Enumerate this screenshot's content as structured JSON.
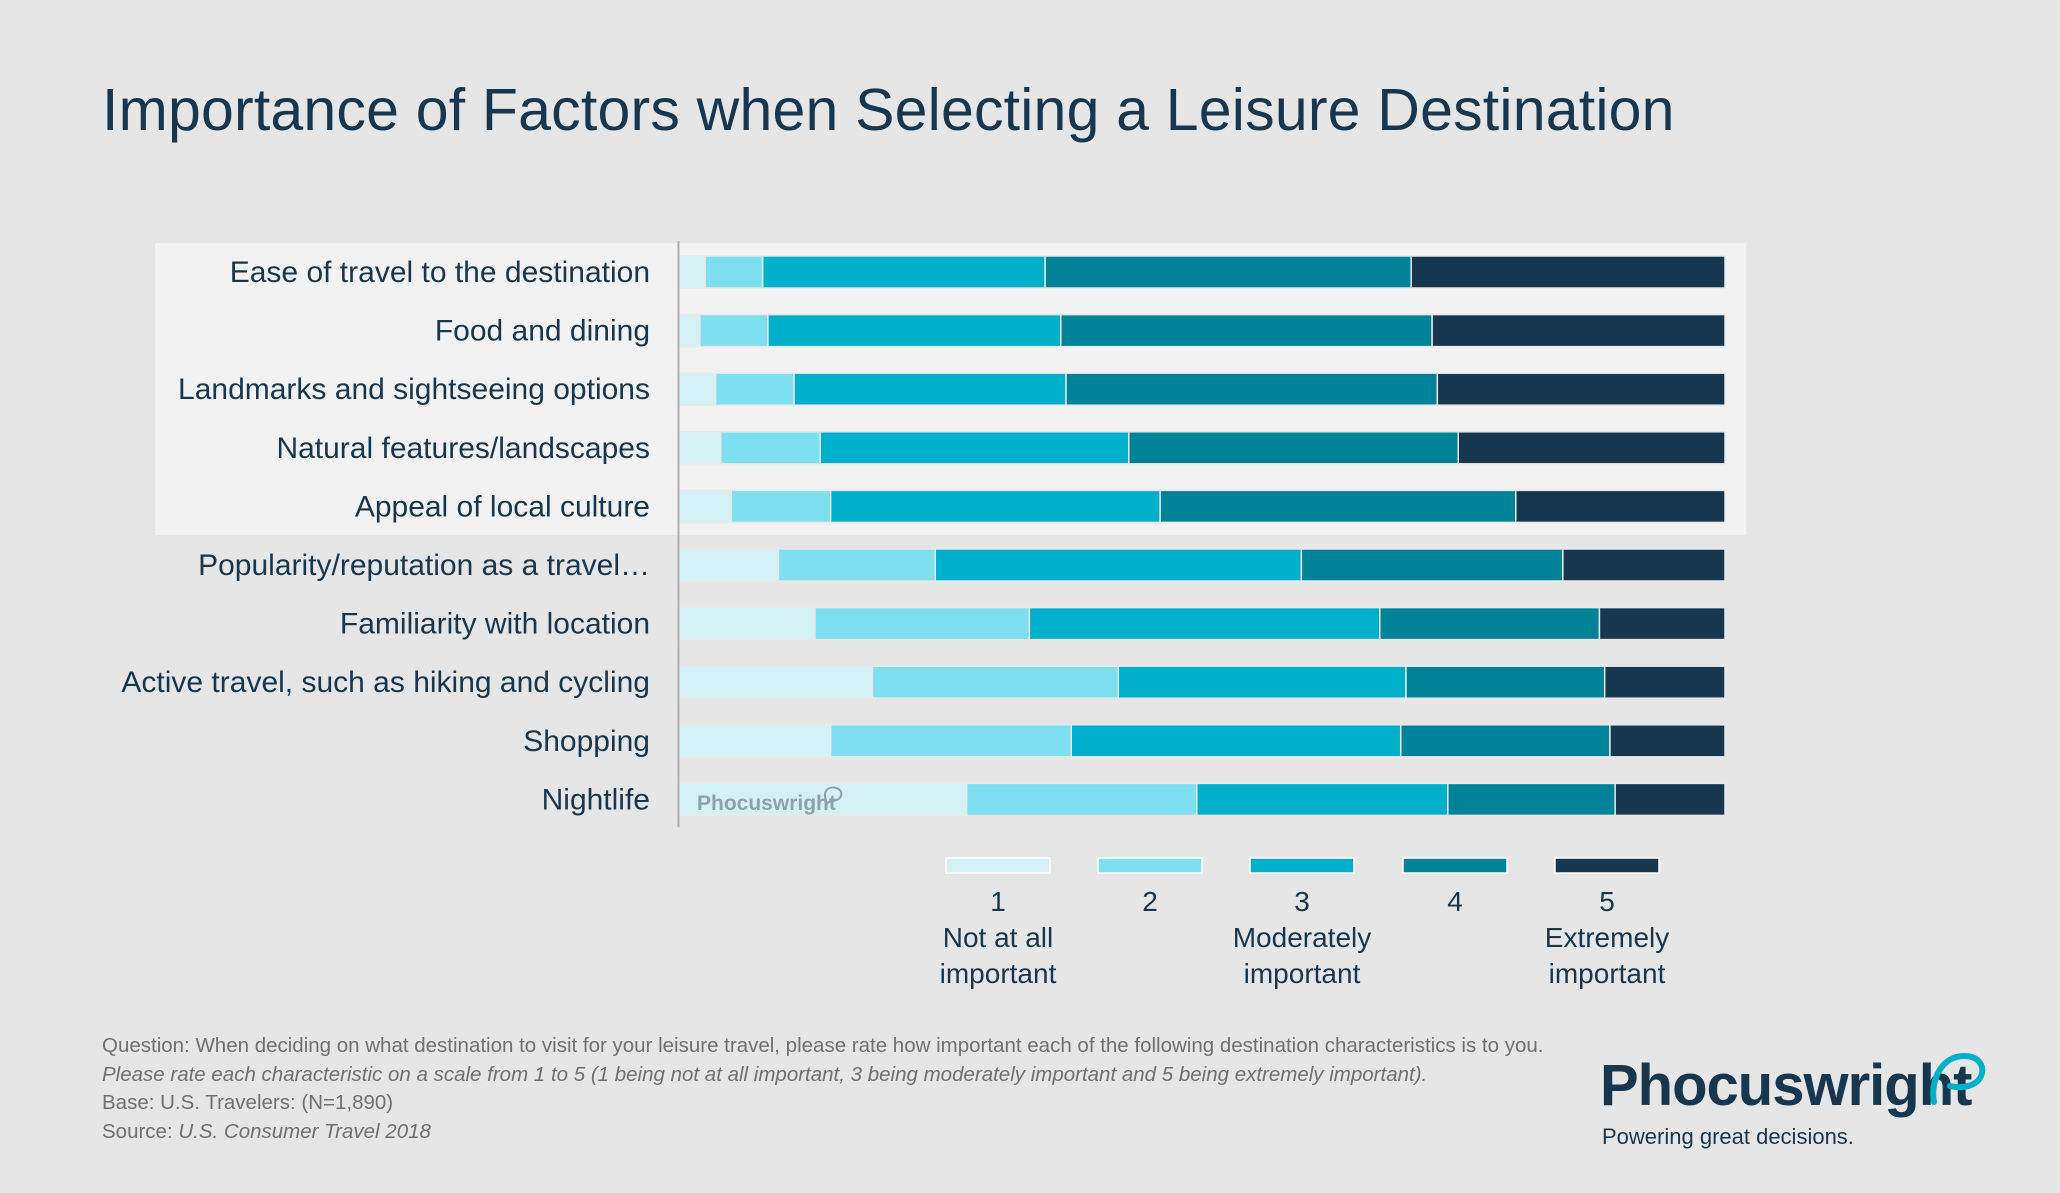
{
  "chart_data": {
    "type": "bar",
    "orientation": "horizontal",
    "stacked": true,
    "percent": true,
    "title": "Importance of Factors when Selecting a Leisure Destination",
    "categories": [
      "Ease of travel to the destination",
      "Food and dining",
      "Landmarks and sightseeing options",
      "Natural features/landscapes",
      "Appeal of local culture",
      "Popularity/reputation as a travel…",
      "Familiarity with location",
      "Active travel, such as hiking and cycling",
      "Shopping",
      "Nightlife"
    ],
    "highlighted_categories": 5,
    "series": [
      {
        "name": "1",
        "color": "#d4f1f6",
        "values": [
          2.5,
          2,
          3.5,
          4,
          5,
          9.5,
          13,
          18.5,
          14.5,
          27.5
        ]
      },
      {
        "name": "2",
        "color": "#7ddfef",
        "values": [
          5.5,
          6.5,
          7.5,
          9.5,
          9.5,
          15,
          20.5,
          23.5,
          23,
          22
        ]
      },
      {
        "name": "3",
        "color": "#00b0ca",
        "values": [
          27,
          28,
          26,
          29.5,
          31.5,
          35,
          33.5,
          27.5,
          31.5,
          24
        ]
      },
      {
        "name": "4",
        "color": "#008299",
        "values": [
          35,
          35.5,
          35.5,
          31.5,
          34,
          25,
          21,
          19,
          20,
          16
        ]
      },
      {
        "name": "5",
        "color": "#17364f",
        "values": [
          30,
          28,
          27.5,
          25.5,
          20,
          15.5,
          12,
          11.5,
          11,
          10.5
        ]
      }
    ],
    "xlim": [
      0,
      100
    ],
    "legend": {
      "position": "bottom",
      "items": [
        {
          "num": "1",
          "desc": [
            "Not at all",
            "important"
          ]
        },
        {
          "num": "2",
          "desc": []
        },
        {
          "num": "3",
          "desc": [
            "Moderately",
            "important"
          ]
        },
        {
          "num": "4",
          "desc": []
        },
        {
          "num": "5",
          "desc": [
            "Extremely",
            "important"
          ]
        }
      ]
    },
    "watermark": "Phocuswright"
  },
  "footnotes": {
    "question": "Question: When deciding on what destination to visit for your leisure travel, please rate how important each of the following destination characteristics is to you.",
    "instruction": "Please rate each characteristic on a scale from 1 to 5 (1 being not at all important, 3 being moderately important and 5 being extremely important).",
    "base": "Base: U.S. Travelers: (N=1,890)",
    "source_prefix": "Source:",
    "source_title": "U.S. Consumer Travel 2018"
  },
  "brand": {
    "name": "Phocuswright",
    "tagline": "Powering great decisions."
  }
}
